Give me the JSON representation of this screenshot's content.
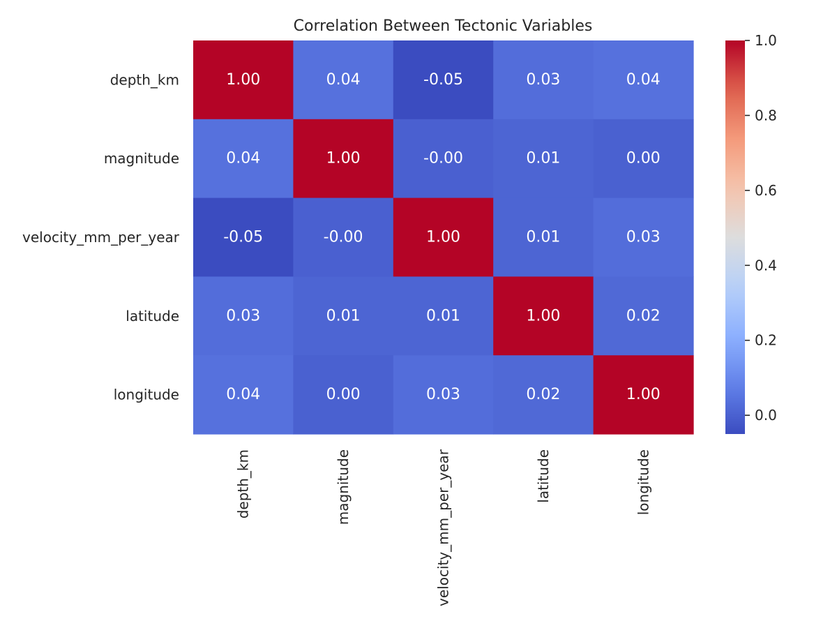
{
  "chart_data": {
    "type": "heatmap",
    "title": "Correlation Between Tectonic Variables",
    "row_labels": [
      "depth_km",
      "magnitude",
      "velocity_mm_per_year",
      "latitude",
      "longitude"
    ],
    "col_labels": [
      "depth_km",
      "magnitude",
      "velocity_mm_per_year",
      "latitude",
      "longitude"
    ],
    "values": [
      [
        1.0,
        0.04,
        -0.05,
        0.03,
        0.04
      ],
      [
        0.04,
        1.0,
        -0.001,
        0.01,
        0.0
      ],
      [
        -0.05,
        -0.001,
        1.0,
        0.01,
        0.03
      ],
      [
        0.03,
        0.01,
        0.01,
        1.0,
        0.02
      ],
      [
        0.04,
        0.0,
        0.03,
        0.02,
        1.0
      ]
    ],
    "annotations": [
      [
        "1.00",
        "0.04",
        "-0.05",
        "0.03",
        "0.04"
      ],
      [
        "0.04",
        "1.00",
        "-0.00",
        "0.01",
        "0.00"
      ],
      [
        "-0.05",
        "-0.00",
        "1.00",
        "0.01",
        "0.03"
      ],
      [
        "0.03",
        "0.01",
        "0.01",
        "1.00",
        "0.02"
      ],
      [
        "0.04",
        "0.00",
        "0.03",
        "0.02",
        "1.00"
      ]
    ],
    "colormap": "coolwarm",
    "vmin": -0.05,
    "vmax": 1.0,
    "colorbar_ticks": [
      "0.0",
      "0.2",
      "0.4",
      "0.6",
      "0.8",
      "1.0"
    ],
    "colorbar_tick_values": [
      0.0,
      0.2,
      0.4,
      0.6,
      0.8,
      1.0
    ],
    "grid": false,
    "legend": "colorbar-right"
  }
}
